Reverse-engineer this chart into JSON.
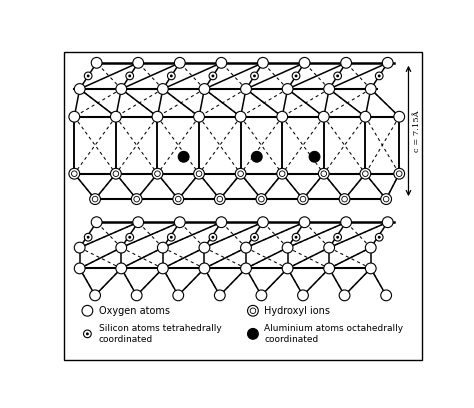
{
  "fig_width": 4.74,
  "fig_height": 4.08,
  "dpi": 100,
  "bg_color": "#ffffff",
  "legend": {
    "oxygen": "Oxygen atoms",
    "hydroxyl": "Hydroxyl ions",
    "silicon": "Silicon atoms tetrahedrally\ncoordinated",
    "aluminium": "Aluminium atoms octahedrally\ncoordinated"
  },
  "annotation": "c = 7.15Å"
}
